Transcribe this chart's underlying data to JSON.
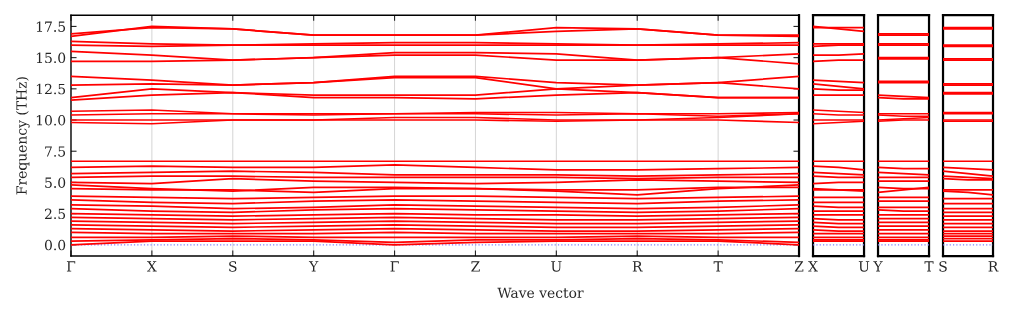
{
  "chart_data": [
    {
      "type": "line",
      "ylabel": "Frequency (THz)",
      "xlabel": "Wave vector",
      "color": "#ff0000",
      "line_style": "solid",
      "grid": "x",
      "categories": [
        "Γ",
        "X",
        "S",
        "Y",
        "Γ",
        "Z",
        "U",
        "R",
        "T",
        "Z"
      ],
      "ylim": [
        -0.9,
        18.4
      ],
      "yticks": [
        {
          "value": 0,
          "label": "0.0"
        },
        {
          "value": 2.5,
          "label": "2.5"
        },
        {
          "value": 5,
          "label": "5.0"
        },
        {
          "value": 7.5,
          "label": "7.5"
        },
        {
          "value": 10,
          "label": "10.0"
        },
        {
          "value": 12.5,
          "label": "12.5"
        },
        {
          "value": 15,
          "label": "15.0"
        },
        {
          "value": 17.5,
          "label": "17.5"
        }
      ],
      "ref_lines": [
        {
          "axis": "y",
          "value": 0,
          "color": "#8080ff",
          "line_style": "dotted"
        }
      ],
      "series": [
        {
          "values": [
            16.7,
            17.5,
            17.3,
            16.8,
            16.8,
            16.8,
            17.1,
            17.3,
            16.8,
            16.7
          ]
        },
        {
          "values": [
            16.9,
            17.4,
            17.3,
            16.8,
            16.8,
            16.8,
            17.4,
            17.3,
            16.8,
            16.8
          ]
        },
        {
          "values": [
            16.3,
            16.1,
            16.0,
            16.1,
            16.2,
            16.2,
            16.1,
            16.0,
            16.1,
            16.2
          ]
        },
        {
          "values": [
            16.0,
            15.9,
            16.0,
            16.0,
            16.0,
            16.0,
            16.0,
            16.0,
            16.0,
            16.0
          ]
        },
        {
          "values": [
            15.5,
            15.2,
            14.8,
            15.0,
            15.4,
            15.4,
            15.3,
            14.8,
            15.0,
            15.3
          ]
        },
        {
          "values": [
            14.7,
            14.7,
            14.8,
            15.0,
            15.2,
            15.2,
            14.8,
            14.8,
            15.0,
            14.5
          ]
        },
        {
          "values": [
            13.5,
            13.2,
            12.8,
            13.0,
            13.5,
            13.5,
            13.0,
            12.8,
            13.0,
            13.5
          ]
        },
        {
          "values": [
            12.8,
            12.9,
            12.8,
            13.0,
            13.4,
            13.4,
            12.5,
            12.8,
            13.0,
            12.5
          ]
        },
        {
          "values": [
            11.8,
            12.5,
            12.2,
            12.0,
            12.0,
            12.0,
            12.5,
            12.2,
            11.8,
            11.8
          ]
        },
        {
          "values": [
            11.6,
            12.0,
            12.2,
            11.8,
            11.8,
            11.7,
            12.0,
            12.2,
            11.8,
            11.8
          ]
        },
        {
          "values": [
            10.7,
            10.8,
            10.5,
            10.5,
            10.5,
            10.6,
            10.6,
            10.5,
            10.5,
            10.6
          ]
        },
        {
          "values": [
            10.4,
            10.5,
            10.5,
            10.4,
            10.5,
            10.5,
            10.4,
            10.5,
            10.3,
            10.5
          ]
        },
        {
          "values": [
            10.0,
            10.0,
            10.0,
            10.0,
            10.2,
            10.2,
            10.0,
            10.0,
            10.2,
            10.5
          ]
        },
        {
          "values": [
            9.8,
            9.7,
            10.0,
            10.0,
            10.0,
            10.0,
            9.9,
            10.0,
            10.0,
            9.8
          ]
        },
        {
          "values": [
            6.7,
            6.7,
            6.7,
            6.7,
            6.7,
            6.7,
            6.7,
            6.7,
            6.7,
            6.7
          ]
        },
        {
          "values": [
            6.2,
            6.3,
            6.2,
            6.2,
            6.4,
            6.2,
            6.0,
            6.0,
            6.1,
            6.2
          ]
        },
        {
          "values": [
            5.7,
            5.8,
            5.9,
            5.8,
            5.6,
            5.6,
            5.6,
            5.5,
            5.6,
            5.7
          ]
        },
        {
          "values": [
            5.4,
            5.5,
            5.5,
            5.4,
            5.4,
            5.4,
            5.4,
            5.3,
            5.4,
            5.4
          ]
        },
        {
          "values": [
            5.0,
            4.9,
            5.3,
            5.1,
            5.0,
            4.9,
            5.0,
            5.2,
            5.1,
            5.0
          ]
        },
        {
          "values": [
            4.8,
            4.5,
            4.3,
            4.6,
            4.6,
            4.5,
            4.3,
            4.0,
            4.5,
            4.8
          ]
        },
        {
          "values": [
            4.5,
            4.4,
            4.4,
            4.2,
            4.5,
            4.5,
            4.4,
            4.4,
            4.6,
            4.6
          ]
        },
        {
          "values": [
            3.9,
            3.8,
            3.7,
            3.8,
            3.9,
            3.9,
            3.8,
            3.7,
            3.8,
            3.9
          ]
        },
        {
          "values": [
            3.6,
            3.4,
            3.3,
            3.5,
            3.6,
            3.5,
            3.4,
            3.3,
            3.5,
            3.6
          ]
        },
        {
          "values": [
            3.2,
            3.1,
            2.9,
            3.0,
            3.2,
            3.1,
            3.0,
            2.9,
            3.0,
            3.2
          ]
        },
        {
          "values": [
            2.9,
            2.7,
            2.6,
            2.8,
            2.9,
            2.8,
            2.7,
            2.6,
            2.7,
            2.9
          ]
        },
        {
          "values": [
            2.5,
            2.4,
            2.3,
            2.4,
            2.5,
            2.4,
            2.4,
            2.3,
            2.4,
            2.5
          ]
        },
        {
          "values": [
            2.2,
            2.1,
            2.0,
            2.1,
            2.2,
            2.1,
            2.0,
            2.0,
            2.1,
            2.2
          ]
        },
        {
          "values": [
            1.9,
            1.8,
            1.7,
            1.8,
            1.9,
            1.8,
            1.7,
            1.7,
            1.8,
            1.9
          ]
        },
        {
          "values": [
            1.6,
            1.5,
            1.4,
            1.5,
            1.6,
            1.5,
            1.4,
            1.4,
            1.5,
            1.6
          ]
        },
        {
          "values": [
            1.3,
            1.2,
            1.1,
            1.2,
            1.3,
            1.2,
            1.1,
            1.1,
            1.2,
            1.3
          ]
        },
        {
          "values": [
            1.0,
            0.9,
            0.9,
            0.9,
            1.0,
            0.9,
            0.9,
            0.9,
            0.9,
            1.0
          ]
        },
        {
          "values": [
            0.6,
            0.6,
            0.7,
            0.6,
            0.6,
            0.6,
            0.6,
            0.7,
            0.6,
            0.6
          ]
        },
        {
          "values": [
            0.3,
            0.4,
            0.5,
            0.4,
            0.2,
            0.4,
            0.4,
            0.5,
            0.4,
            0.2
          ]
        },
        {
          "values": [
            0.0,
            0.3,
            0.3,
            0.3,
            0.0,
            0.2,
            0.3,
            0.3,
            0.3,
            0.0
          ]
        }
      ]
    },
    {
      "type": "line",
      "color": "#ff0000",
      "line_style": "solid",
      "tick_labels": "x",
      "categories": [
        "X",
        null,
        "U"
      ],
      "ylim": [
        -0.9,
        18.4
      ],
      "ref_lines": [
        {
          "axis": "y",
          "value": 0,
          "color": "#8080ff",
          "line_style": "dotted"
        }
      ],
      "series": [
        {
          "values": [
            17.5,
            17.3,
            17.1
          ]
        },
        {
          "values": [
            17.4,
            17.4,
            17.4
          ]
        },
        {
          "values": [
            16.1,
            16.1,
            16.1
          ]
        },
        {
          "values": [
            15.9,
            16.0,
            16.0
          ]
        },
        {
          "values": [
            15.2,
            15.2,
            15.3
          ]
        },
        {
          "values": [
            14.7,
            14.8,
            14.8
          ]
        },
        {
          "values": [
            13.2,
            13.1,
            13.0
          ]
        },
        {
          "values": [
            12.9,
            12.7,
            12.5
          ]
        },
        {
          "values": [
            12.5,
            12.4,
            12.4
          ]
        },
        {
          "values": [
            12.0,
            12.0,
            12.0
          ]
        },
        {
          "values": [
            10.8,
            10.7,
            10.6
          ]
        },
        {
          "values": [
            10.5,
            10.4,
            10.4
          ]
        },
        {
          "values": [
            10.0,
            10.0,
            10.0
          ]
        },
        {
          "values": [
            9.7,
            9.8,
            9.9
          ]
        },
        {
          "values": [
            6.7,
            6.7,
            6.7
          ]
        },
        {
          "values": [
            6.3,
            6.2,
            6.0
          ]
        },
        {
          "values": [
            5.8,
            5.7,
            5.6
          ]
        },
        {
          "values": [
            5.5,
            5.4,
            5.4
          ]
        },
        {
          "values": [
            4.9,
            5.0,
            5.0
          ]
        },
        {
          "values": [
            4.5,
            4.4,
            4.3
          ]
        },
        {
          "values": [
            4.4,
            4.4,
            4.4
          ]
        },
        {
          "values": [
            3.8,
            3.8,
            3.8
          ]
        },
        {
          "values": [
            3.4,
            3.4,
            3.4
          ]
        },
        {
          "values": [
            3.1,
            3.0,
            3.0
          ]
        },
        {
          "values": [
            2.7,
            2.7,
            2.7
          ]
        },
        {
          "values": [
            2.4,
            2.4,
            2.4
          ]
        },
        {
          "values": [
            2.1,
            2.0,
            2.0
          ]
        },
        {
          "values": [
            1.8,
            1.7,
            1.7
          ]
        },
        {
          "values": [
            1.5,
            1.4,
            1.4
          ]
        },
        {
          "values": [
            1.2,
            1.1,
            1.1
          ]
        },
        {
          "values": [
            0.9,
            0.9,
            0.9
          ]
        },
        {
          "values": [
            0.6,
            0.6,
            0.6
          ]
        },
        {
          "values": [
            0.4,
            0.4,
            0.4
          ]
        },
        {
          "values": [
            0.3,
            0.3,
            0.3
          ]
        }
      ]
    },
    {
      "type": "line",
      "color": "#ff0000",
      "line_style": "solid",
      "tick_labels": "x",
      "categories": [
        "Y",
        null,
        "T"
      ],
      "ylim": [
        -0.9,
        18.4
      ],
      "ref_lines": [
        {
          "axis": "y",
          "value": 0,
          "color": "#8080ff",
          "line_style": "dotted"
        }
      ],
      "series": [
        {
          "values": [
            16.8,
            16.8,
            16.8
          ]
        },
        {
          "values": [
            16.9,
            16.9,
            16.9
          ]
        },
        {
          "values": [
            16.1,
            16.1,
            16.1
          ]
        },
        {
          "values": [
            16.0,
            16.0,
            16.0
          ]
        },
        {
          "values": [
            15.0,
            15.0,
            15.0
          ]
        },
        {
          "values": [
            14.9,
            14.9,
            14.9
          ]
        },
        {
          "values": [
            13.0,
            13.0,
            13.0
          ]
        },
        {
          "values": [
            13.1,
            13.1,
            13.1
          ]
        },
        {
          "values": [
            12.0,
            11.9,
            11.8
          ]
        },
        {
          "values": [
            11.8,
            11.7,
            11.7
          ]
        },
        {
          "values": [
            10.5,
            10.5,
            10.5
          ]
        },
        {
          "values": [
            10.4,
            10.3,
            10.3
          ]
        },
        {
          "values": [
            10.0,
            10.1,
            10.2
          ]
        },
        {
          "values": [
            9.9,
            10.0,
            10.0
          ]
        },
        {
          "values": [
            6.7,
            6.7,
            6.7
          ]
        },
        {
          "values": [
            6.2,
            6.1,
            6.1
          ]
        },
        {
          "values": [
            5.8,
            5.7,
            5.6
          ]
        },
        {
          "values": [
            5.4,
            5.4,
            5.4
          ]
        },
        {
          "values": [
            5.1,
            5.1,
            5.1
          ]
        },
        {
          "values": [
            4.6,
            4.5,
            4.5
          ]
        },
        {
          "values": [
            4.2,
            4.4,
            4.6
          ]
        },
        {
          "values": [
            3.8,
            3.8,
            3.8
          ]
        },
        {
          "values": [
            3.5,
            3.5,
            3.5
          ]
        },
        {
          "values": [
            3.0,
            3.0,
            3.0
          ]
        },
        {
          "values": [
            2.8,
            2.7,
            2.7
          ]
        },
        {
          "values": [
            2.4,
            2.4,
            2.4
          ]
        },
        {
          "values": [
            2.1,
            2.1,
            2.1
          ]
        },
        {
          "values": [
            1.8,
            1.8,
            1.8
          ]
        },
        {
          "values": [
            1.5,
            1.5,
            1.5
          ]
        },
        {
          "values": [
            1.2,
            1.2,
            1.2
          ]
        },
        {
          "values": [
            0.9,
            0.9,
            0.9
          ]
        },
        {
          "values": [
            0.6,
            0.6,
            0.6
          ]
        },
        {
          "values": [
            0.4,
            0.4,
            0.4
          ]
        },
        {
          "values": [
            0.3,
            0.3,
            0.3
          ]
        }
      ]
    },
    {
      "type": "line",
      "color": "#ff0000",
      "line_style": "solid",
      "tick_labels": "x",
      "categories": [
        "S",
        null,
        "R"
      ],
      "ylim": [
        -0.9,
        18.4
      ],
      "ref_lines": [
        {
          "axis": "y",
          "value": 0,
          "color": "#8080ff",
          "line_style": "dotted"
        }
      ],
      "series": [
        {
          "values": [
            17.3,
            17.3,
            17.3
          ]
        },
        {
          "values": [
            17.4,
            17.4,
            17.4
          ]
        },
        {
          "values": [
            16.0,
            16.0,
            16.0
          ]
        },
        {
          "values": [
            15.9,
            15.9,
            15.9
          ]
        },
        {
          "values": [
            14.8,
            14.8,
            14.8
          ]
        },
        {
          "values": [
            14.9,
            14.9,
            14.9
          ]
        },
        {
          "values": [
            12.8,
            12.8,
            12.8
          ]
        },
        {
          "values": [
            12.9,
            12.9,
            12.9
          ]
        },
        {
          "values": [
            12.2,
            12.2,
            12.2
          ]
        },
        {
          "values": [
            12.1,
            12.1,
            12.1
          ]
        },
        {
          "values": [
            10.5,
            10.5,
            10.5
          ]
        },
        {
          "values": [
            10.6,
            10.6,
            10.6
          ]
        },
        {
          "values": [
            10.0,
            10.0,
            10.0
          ]
        },
        {
          "values": [
            9.9,
            9.9,
            9.9
          ]
        },
        {
          "values": [
            6.7,
            6.7,
            6.7
          ]
        },
        {
          "values": [
            6.2,
            6.1,
            6.0
          ]
        },
        {
          "values": [
            5.9,
            5.7,
            5.5
          ]
        },
        {
          "values": [
            5.5,
            5.4,
            5.3
          ]
        },
        {
          "values": [
            5.3,
            5.2,
            5.2
          ]
        },
        {
          "values": [
            4.3,
            4.2,
            4.0
          ]
        },
        {
          "values": [
            4.4,
            4.4,
            4.4
          ]
        },
        {
          "values": [
            3.7,
            3.7,
            3.7
          ]
        },
        {
          "values": [
            3.3,
            3.3,
            3.3
          ]
        },
        {
          "values": [
            2.9,
            2.9,
            2.9
          ]
        },
        {
          "values": [
            2.6,
            2.6,
            2.6
          ]
        },
        {
          "values": [
            2.3,
            2.3,
            2.3
          ]
        },
        {
          "values": [
            2.0,
            2.0,
            2.0
          ]
        },
        {
          "values": [
            1.7,
            1.7,
            1.7
          ]
        },
        {
          "values": [
            1.4,
            1.4,
            1.4
          ]
        },
        {
          "values": [
            1.1,
            1.1,
            1.1
          ]
        },
        {
          "values": [
            0.9,
            0.9,
            0.9
          ]
        },
        {
          "values": [
            0.7,
            0.7,
            0.7
          ]
        },
        {
          "values": [
            0.5,
            0.5,
            0.5
          ]
        },
        {
          "values": [
            0.3,
            0.3,
            0.3
          ]
        }
      ]
    }
  ]
}
